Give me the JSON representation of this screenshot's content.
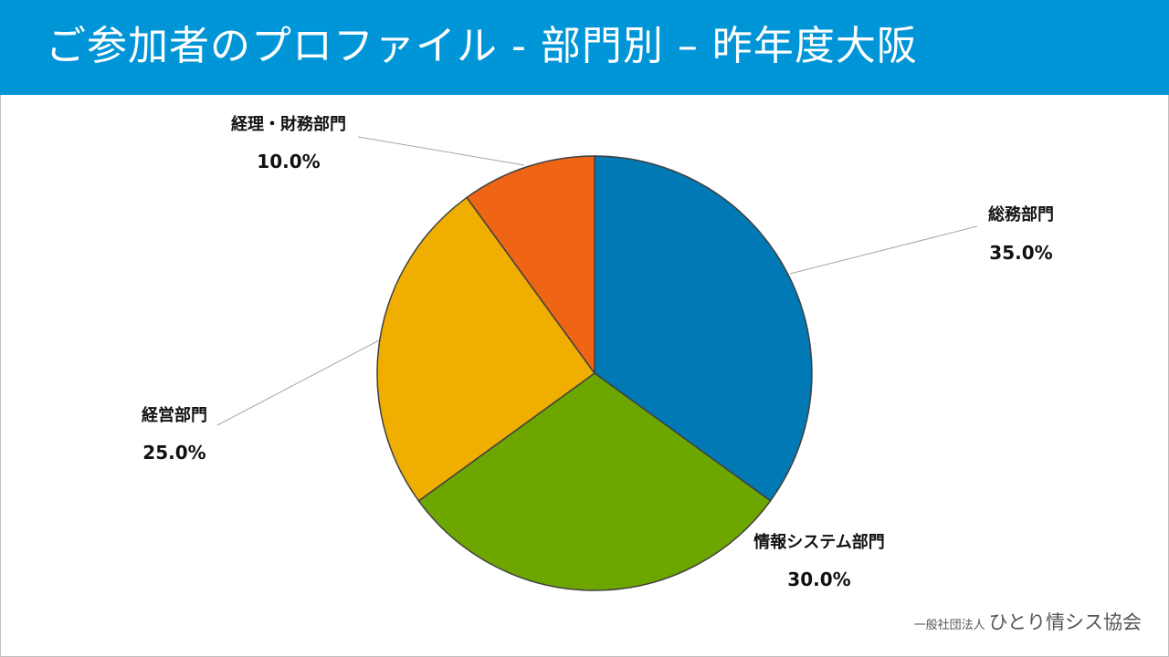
{
  "header": {
    "title": "ご参加者のプロファイル - 部門別 – 昨年度大阪"
  },
  "colors": {
    "header_bg": "#0095d6",
    "slices": [
      "#0079b5",
      "#6ea600",
      "#f0ae00",
      "#ef6515"
    ]
  },
  "chart_data": {
    "type": "pie",
    "start_angle_deg": 0,
    "direction": "clockwise",
    "slices": [
      {
        "label": "総務部門",
        "value": 35.0,
        "display": "35.0%"
      },
      {
        "label": "情報システム部門",
        "value": 30.0,
        "display": "30.0%"
      },
      {
        "label": "経営部門",
        "value": 25.0,
        "display": "25.0%"
      },
      {
        "label": "経理・財務部門",
        "value": 10.0,
        "display": "10.0%"
      }
    ]
  },
  "footer": {
    "org_type": "一般社団法人",
    "org_name": "ひとり情シス協会"
  }
}
